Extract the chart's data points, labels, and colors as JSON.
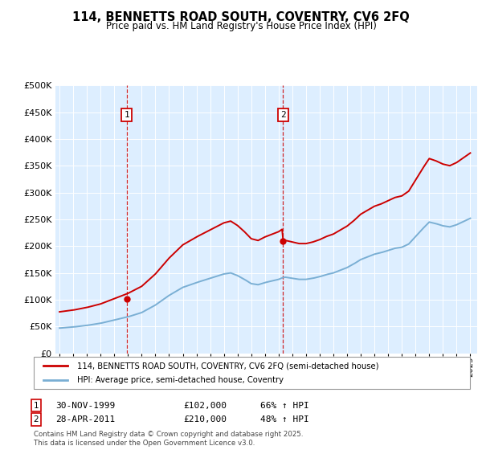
{
  "title": "114, BENNETTS ROAD SOUTH, COVENTRY, CV6 2FQ",
  "subtitle": "Price paid vs. HM Land Registry's House Price Index (HPI)",
  "property_label": "114, BENNETTS ROAD SOUTH, COVENTRY, CV6 2FQ (semi-detached house)",
  "hpi_label": "HPI: Average price, semi-detached house, Coventry",
  "sale1_date": "30-NOV-1999",
  "sale1_price": 102000,
  "sale1_hpi": "66% ↑ HPI",
  "sale2_date": "28-APR-2011",
  "sale2_price": 210000,
  "sale2_hpi": "48% ↑ HPI",
  "footnote": "Contains HM Land Registry data © Crown copyright and database right 2025.\nThis data is licensed under the Open Government Licence v3.0.",
  "line_color_property": "#cc0000",
  "line_color_hpi": "#7aafd4",
  "background_color": "#ddeeff",
  "ylim": [
    0,
    500000
  ],
  "yticks": [
    0,
    50000,
    100000,
    150000,
    200000,
    250000,
    300000,
    350000,
    400000,
    450000,
    500000
  ],
  "sale1_x": 1999.917,
  "sale2_x": 2011.33,
  "hpi_at_sale1": 62000,
  "hpi_at_sale2": 141500
}
